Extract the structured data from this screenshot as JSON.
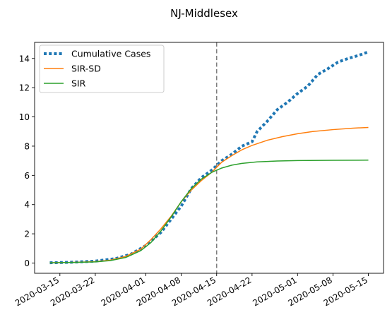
{
  "chart_data": {
    "type": "line",
    "title": "NJ-Middlesex",
    "xlabel": "",
    "ylabel": "",
    "x_axis": "date",
    "xlim": [
      "2020-03-10",
      "2020-05-18"
    ],
    "ylim": [
      -0.7,
      15.1
    ],
    "x_ticks": [
      "2020-03-15",
      "2020-03-22",
      "2020-04-01",
      "2020-04-08",
      "2020-04-15",
      "2020-04-22",
      "2020-05-01",
      "2020-05-08",
      "2020-05-15"
    ],
    "y_ticks": [
      0,
      2,
      4,
      6,
      8,
      10,
      12,
      14
    ],
    "grid": false,
    "legend_position": "top-left",
    "vertical_line": {
      "x": "2020-04-15",
      "style": "dashed",
      "color": "#7f7f7f"
    },
    "series": [
      {
        "name": "Cumulative Cases",
        "style": "dotted",
        "color": "#1f77b4",
        "points": [
          [
            "2020-03-13",
            0.02
          ],
          [
            "2020-03-17",
            0.05
          ],
          [
            "2020-03-22",
            0.13
          ],
          [
            "2020-03-26",
            0.3
          ],
          [
            "2020-03-29",
            0.6
          ],
          [
            "2020-04-01",
            1.2
          ],
          [
            "2020-04-04",
            2.1
          ],
          [
            "2020-04-06",
            3.0
          ],
          [
            "2020-04-08",
            3.9
          ],
          [
            "2020-04-10",
            5.1
          ],
          [
            "2020-04-12",
            5.85
          ],
          [
            "2020-04-14",
            6.35
          ],
          [
            "2020-04-16",
            7.0
          ],
          [
            "2020-04-18",
            7.45
          ],
          [
            "2020-04-20",
            8.0
          ],
          [
            "2020-04-22",
            8.3
          ],
          [
            "2020-04-23",
            9.0
          ],
          [
            "2020-04-25",
            9.7
          ],
          [
            "2020-04-27",
            10.5
          ],
          [
            "2020-04-29",
            11.0
          ],
          [
            "2020-05-01",
            11.6
          ],
          [
            "2020-05-03",
            12.1
          ],
          [
            "2020-05-05",
            12.9
          ],
          [
            "2020-05-07",
            13.3
          ],
          [
            "2020-05-09",
            13.75
          ],
          [
            "2020-05-11",
            14.0
          ],
          [
            "2020-05-13",
            14.2
          ],
          [
            "2020-05-15",
            14.45
          ]
        ]
      },
      {
        "name": "SIR-SD",
        "style": "solid",
        "color": "#ff7f0e",
        "points": [
          [
            "2020-03-13",
            0.02
          ],
          [
            "2020-03-18",
            0.05
          ],
          [
            "2020-03-22",
            0.1
          ],
          [
            "2020-03-25",
            0.2
          ],
          [
            "2020-03-28",
            0.45
          ],
          [
            "2020-03-31",
            0.95
          ],
          [
            "2020-04-02",
            1.6
          ],
          [
            "2020-04-04",
            2.35
          ],
          [
            "2020-04-06",
            3.2
          ],
          [
            "2020-04-08",
            4.2
          ],
          [
            "2020-04-10",
            5.0
          ],
          [
            "2020-04-12",
            5.65
          ],
          [
            "2020-04-14",
            6.2
          ],
          [
            "2020-04-16",
            6.9
          ],
          [
            "2020-04-18",
            7.35
          ],
          [
            "2020-04-20",
            7.75
          ],
          [
            "2020-04-22",
            8.05
          ],
          [
            "2020-04-25",
            8.4
          ],
          [
            "2020-04-28",
            8.65
          ],
          [
            "2020-05-01",
            8.85
          ],
          [
            "2020-05-04",
            9.0
          ],
          [
            "2020-05-08",
            9.13
          ],
          [
            "2020-05-12",
            9.23
          ],
          [
            "2020-05-15",
            9.28
          ]
        ]
      },
      {
        "name": "SIR",
        "style": "solid",
        "color": "#2ca02c",
        "points": [
          [
            "2020-03-13",
            0.02
          ],
          [
            "2020-03-18",
            0.04
          ],
          [
            "2020-03-22",
            0.08
          ],
          [
            "2020-03-25",
            0.17
          ],
          [
            "2020-03-28",
            0.38
          ],
          [
            "2020-03-31",
            0.85
          ],
          [
            "2020-04-02",
            1.4
          ],
          [
            "2020-04-04",
            2.2
          ],
          [
            "2020-04-06",
            3.15
          ],
          [
            "2020-04-08",
            4.2
          ],
          [
            "2020-04-10",
            5.1
          ],
          [
            "2020-04-12",
            5.75
          ],
          [
            "2020-04-14",
            6.2
          ],
          [
            "2020-04-16",
            6.5
          ],
          [
            "2020-04-18",
            6.7
          ],
          [
            "2020-04-20",
            6.82
          ],
          [
            "2020-04-23",
            6.92
          ],
          [
            "2020-04-27",
            6.98
          ],
          [
            "2020-05-01",
            7.01
          ],
          [
            "2020-05-08",
            7.03
          ],
          [
            "2020-05-15",
            7.04
          ]
        ]
      }
    ]
  }
}
